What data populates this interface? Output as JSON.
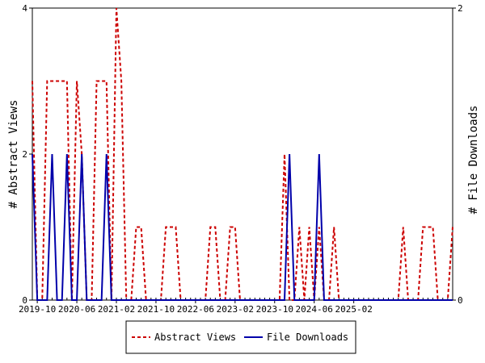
{
  "chart_data": {
    "type": "line",
    "x_tick_labels": [
      "2019-10",
      "2020-06",
      "2021-02",
      "2021-10",
      "2022-06",
      "2023-02",
      "2023-10",
      "2024-06",
      "2025-02"
    ],
    "y_left": {
      "label": "# Abstract Views",
      "ticks": [
        "0",
        "2",
        "4"
      ],
      "range": [
        0,
        4
      ]
    },
    "y_right": {
      "label": "# File Downloads",
      "ticks": [
        "0",
        "2"
      ],
      "range": [
        0,
        2
      ]
    },
    "x_start": "2019-09",
    "series": [
      {
        "name": "Abstract Views",
        "axis": "left",
        "color": "#cc0000",
        "style": "dashed",
        "values": [
          3,
          0,
          0,
          3,
          3,
          3,
          3,
          3,
          0,
          3,
          2,
          0,
          0,
          3,
          3,
          3,
          0,
          4,
          3,
          0,
          0,
          1,
          1,
          0,
          0,
          0,
          0,
          1,
          1,
          1,
          0,
          0,
          0,
          0,
          0,
          0,
          1,
          1,
          0,
          0,
          1,
          1,
          0,
          0,
          0,
          0,
          0,
          0,
          0,
          0,
          0,
          2,
          0,
          0,
          1,
          0,
          1,
          0,
          1,
          0,
          0,
          1,
          0,
          0,
          0,
          0,
          0,
          0,
          0,
          0,
          0,
          0,
          0,
          0,
          0,
          1,
          0,
          0,
          0,
          1,
          1,
          1,
          0,
          0,
          0,
          1
        ]
      },
      {
        "name": "File Downloads",
        "axis": "right",
        "color": "#0000aa",
        "style": "solid",
        "values": [
          1,
          0,
          0,
          0,
          1,
          0,
          0,
          1,
          0,
          0,
          1,
          0,
          0,
          0,
          0,
          1,
          0,
          0,
          0,
          0,
          0,
          0,
          0,
          0,
          0,
          0,
          0,
          0,
          0,
          0,
          0,
          0,
          0,
          0,
          0,
          0,
          0,
          0,
          0,
          0,
          0,
          0,
          0,
          0,
          0,
          0,
          0,
          0,
          0,
          0,
          0,
          0,
          1,
          0,
          0,
          0,
          0,
          0,
          1,
          0,
          0,
          0,
          0,
          0,
          0,
          0,
          0,
          0,
          0,
          0,
          0,
          0,
          0,
          0,
          0,
          0,
          0,
          0,
          0,
          0,
          0,
          0,
          0,
          0,
          0,
          0
        ]
      }
    ],
    "legend": {
      "placement": "bottom"
    }
  }
}
